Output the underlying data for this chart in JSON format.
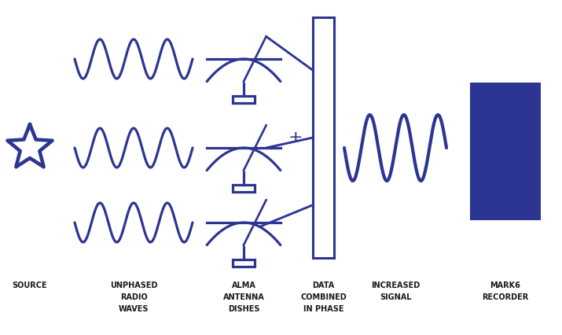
{
  "bg_color": "#ffffff",
  "main_color": "#2d3593",
  "fig_width": 7.15,
  "fig_height": 4.26,
  "dpi": 100,
  "labels": {
    "source": "SOURCE",
    "unphased": "UNPHASED\nRADIO\nWAVES",
    "alma": "ALMA\nANTENNA\nDISHES",
    "data_combined": "DATA\nCOMBINED\nIN PHASE",
    "increased_signal": "INCREASED\nSIGNAL",
    "mark6": "MARK6\nRECORDER"
  },
  "label_fontsize": 7.0,
  "wave_lw": 2.3,
  "label_color": "#1a1a1a"
}
